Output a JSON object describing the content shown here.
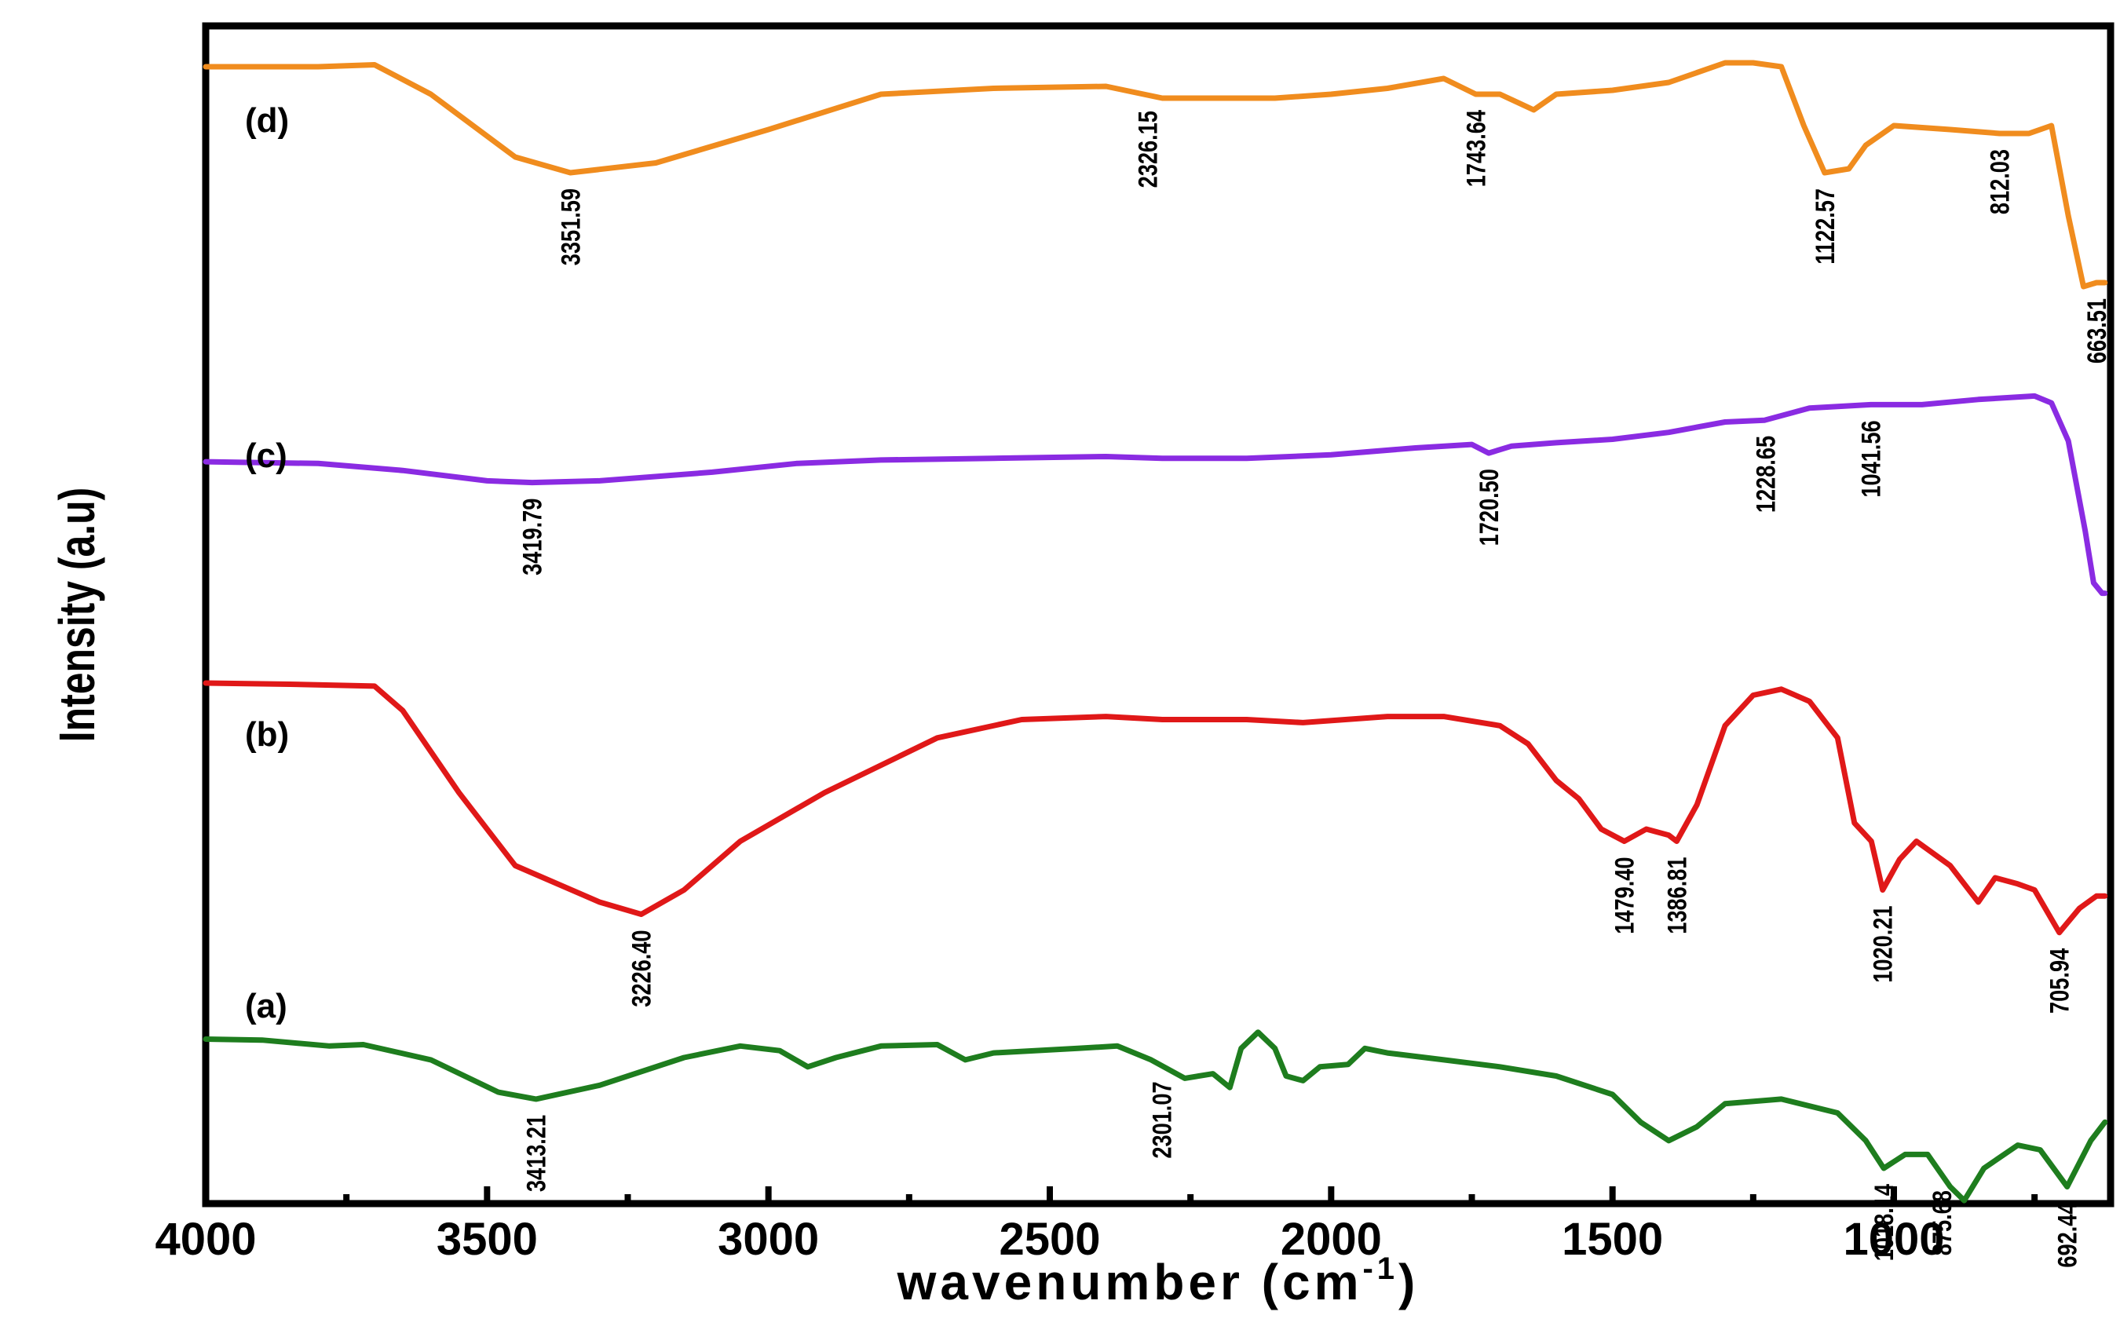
{
  "chart_data": {
    "type": "line",
    "title": "",
    "xlabel": "wavenumber (cm",
    "xlabel_superscript": "-1",
    "xlabel_suffix": ")",
    "ylabel": "Intensity (a.u)",
    "xlim": [
      4000,
      620
    ],
    "x_reversed": true,
    "x_ticks": [
      4000,
      3500,
      3000,
      2500,
      2000,
      1500,
      1000
    ],
    "x_tick_labels": [
      "4000",
      "3500",
      "3000",
      "2500",
      "2000",
      "1500",
      "1000"
    ],
    "grid": false,
    "legend": "none",
    "series": [
      {
        "name": "(a)",
        "color": "#1e7d1e",
        "points": [
          [
            4000,
            0.4
          ],
          [
            3900,
            0.42
          ],
          [
            3780,
            0.55
          ],
          [
            3720,
            0.52
          ],
          [
            3600,
            0.85
          ],
          [
            3480,
            1.55
          ],
          [
            3413,
            1.7
          ],
          [
            3300,
            1.4
          ],
          [
            3150,
            0.8
          ],
          [
            3050,
            0.55
          ],
          [
            2980,
            0.65
          ],
          [
            2930,
            1.0
          ],
          [
            2880,
            0.8
          ],
          [
            2800,
            0.55
          ],
          [
            2700,
            0.52
          ],
          [
            2650,
            0.85
          ],
          [
            2600,
            0.7
          ],
          [
            2450,
            0.6
          ],
          [
            2380,
            0.55
          ],
          [
            2320,
            0.85
          ],
          [
            2260,
            1.25
          ],
          [
            2210,
            1.15
          ],
          [
            2180,
            1.45
          ],
          [
            2160,
            0.6
          ],
          [
            2130,
            0.25
          ],
          [
            2100,
            0.6
          ],
          [
            2080,
            1.2
          ],
          [
            2050,
            1.3
          ],
          [
            2020,
            1.0
          ],
          [
            1970,
            0.95
          ],
          [
            1940,
            0.6
          ],
          [
            1900,
            0.7
          ],
          [
            1800,
            0.85
          ],
          [
            1700,
            1.0
          ],
          [
            1600,
            1.2
          ],
          [
            1500,
            1.6
          ],
          [
            1450,
            2.2
          ],
          [
            1400,
            2.6
          ],
          [
            1350,
            2.3
          ],
          [
            1300,
            1.8
          ],
          [
            1200,
            1.7
          ],
          [
            1100,
            2.0
          ],
          [
            1050,
            2.6
          ],
          [
            1018,
            3.2
          ],
          [
            980,
            2.9
          ],
          [
            940,
            2.9
          ],
          [
            900,
            3.6
          ],
          [
            875,
            3.9
          ],
          [
            840,
            3.2
          ],
          [
            780,
            2.7
          ],
          [
            740,
            2.8
          ],
          [
            692,
            3.6
          ],
          [
            650,
            2.6
          ],
          [
            625,
            2.2
          ]
        ]
      },
      {
        "name": "(b)",
        "color": "#e01818",
        "points": [
          [
            4000,
            0.0
          ],
          [
            3850,
            0.02
          ],
          [
            3700,
            0.05
          ],
          [
            3650,
            0.45
          ],
          [
            3550,
            1.8
          ],
          [
            3450,
            3.0
          ],
          [
            3300,
            3.6
          ],
          [
            3226,
            3.8
          ],
          [
            3150,
            3.4
          ],
          [
            3050,
            2.6
          ],
          [
            2900,
            1.8
          ],
          [
            2700,
            0.9
          ],
          [
            2550,
            0.6
          ],
          [
            2400,
            0.55
          ],
          [
            2300,
            0.6
          ],
          [
            2150,
            0.6
          ],
          [
            2050,
            0.65
          ],
          [
            1900,
            0.55
          ],
          [
            1800,
            0.55
          ],
          [
            1700,
            0.7
          ],
          [
            1650,
            1.0
          ],
          [
            1600,
            1.6
          ],
          [
            1560,
            1.9
          ],
          [
            1520,
            2.4
          ],
          [
            1479,
            2.6
          ],
          [
            1440,
            2.4
          ],
          [
            1400,
            2.5
          ],
          [
            1386,
            2.6
          ],
          [
            1350,
            2.0
          ],
          [
            1300,
            0.7
          ],
          [
            1250,
            0.2
          ],
          [
            1200,
            0.1
          ],
          [
            1150,
            0.3
          ],
          [
            1100,
            0.9
          ],
          [
            1070,
            2.3
          ],
          [
            1040,
            2.6
          ],
          [
            1020,
            3.4
          ],
          [
            990,
            2.9
          ],
          [
            960,
            2.6
          ],
          [
            900,
            3.0
          ],
          [
            850,
            3.6
          ],
          [
            820,
            3.2
          ],
          [
            780,
            3.3
          ],
          [
            750,
            3.4
          ],
          [
            706,
            4.1
          ],
          [
            670,
            3.7
          ],
          [
            640,
            3.5
          ],
          [
            625,
            3.5
          ]
        ]
      },
      {
        "name": "(c)",
        "color": "#8a2be2",
        "points": [
          [
            4000,
            0.5
          ],
          [
            3800,
            0.55
          ],
          [
            3650,
            0.75
          ],
          [
            3500,
            1.05
          ],
          [
            3420,
            1.1
          ],
          [
            3300,
            1.05
          ],
          [
            3100,
            0.8
          ],
          [
            2950,
            0.55
          ],
          [
            2800,
            0.45
          ],
          [
            2600,
            0.4
          ],
          [
            2400,
            0.35
          ],
          [
            2300,
            0.4
          ],
          [
            2150,
            0.4
          ],
          [
            2000,
            0.3
          ],
          [
            1850,
            0.1
          ],
          [
            1750,
            0.0
          ],
          [
            1720,
            0.25
          ],
          [
            1680,
            0.05
          ],
          [
            1600,
            -0.05
          ],
          [
            1500,
            -0.15
          ],
          [
            1400,
            -0.35
          ],
          [
            1300,
            -0.65
          ],
          [
            1230,
            -0.7
          ],
          [
            1150,
            -1.05
          ],
          [
            1041,
            -1.15
          ],
          [
            950,
            -1.15
          ],
          [
            850,
            -1.3
          ],
          [
            750,
            -1.4
          ],
          [
            720,
            -1.2
          ],
          [
            690,
            -0.1
          ],
          [
            660,
            2.5
          ],
          [
            645,
            4.0
          ],
          [
            630,
            4.3
          ],
          [
            625,
            4.3
          ]
        ]
      },
      {
        "name": "(d)",
        "color": "#f08c1e",
        "points": [
          [
            4000,
            0.0
          ],
          [
            3800,
            0.0
          ],
          [
            3700,
            -0.05
          ],
          [
            3600,
            0.7
          ],
          [
            3450,
            2.3
          ],
          [
            3352,
            2.7
          ],
          [
            3200,
            2.45
          ],
          [
            3000,
            1.6
          ],
          [
            2800,
            0.7
          ],
          [
            2600,
            0.55
          ],
          [
            2400,
            0.5
          ],
          [
            2300,
            0.8
          ],
          [
            2100,
            0.8
          ],
          [
            2000,
            0.7
          ],
          [
            1900,
            0.55
          ],
          [
            1800,
            0.3
          ],
          [
            1743,
            0.7
          ],
          [
            1700,
            0.7
          ],
          [
            1640,
            1.1
          ],
          [
            1600,
            0.7
          ],
          [
            1500,
            0.6
          ],
          [
            1400,
            0.4
          ],
          [
            1300,
            -0.1
          ],
          [
            1250,
            -0.1
          ],
          [
            1200,
            0.0
          ],
          [
            1160,
            1.5
          ],
          [
            1123,
            2.7
          ],
          [
            1080,
            2.6
          ],
          [
            1050,
            2.0
          ],
          [
            1000,
            1.5
          ],
          [
            900,
            1.6
          ],
          [
            812,
            1.7
          ],
          [
            760,
            1.7
          ],
          [
            720,
            1.5
          ],
          [
            690,
            3.8
          ],
          [
            663,
            5.6
          ],
          [
            640,
            5.5
          ],
          [
            625,
            5.5
          ]
        ]
      }
    ],
    "series_tags": [
      "(a)",
      "(b)",
      "(c)",
      "(d)"
    ],
    "peak_labels": [
      {
        "series": "(a)",
        "text": "3413.21",
        "x": 3413
      },
      {
        "series": "(a)",
        "text": "2301.07",
        "x": 2301
      },
      {
        "series": "(a)",
        "text": "1018.14",
        "x": 1018
      },
      {
        "series": "(a)",
        "text": "875.68",
        "x": 915
      },
      {
        "series": "(a)",
        "text": "692.44",
        "x": 692
      },
      {
        "series": "(b)",
        "text": "3226.40",
        "x": 3226
      },
      {
        "series": "(b)",
        "text": "1479.40",
        "x": 1479
      },
      {
        "series": "(b)",
        "text": "1386.81",
        "x": 1386
      },
      {
        "series": "(b)",
        "text": "1020.21",
        "x": 1020
      },
      {
        "series": "(b)",
        "text": "705.94",
        "x": 706
      },
      {
        "series": "(c)",
        "text": "3419.79",
        "x": 3420
      },
      {
        "series": "(c)",
        "text": "1720.50",
        "x": 1720
      },
      {
        "series": "(c)",
        "text": "1228.65",
        "x": 1228
      },
      {
        "series": "(c)",
        "text": "1041.56",
        "x": 1041
      },
      {
        "series": "(d)",
        "text": "3351.59",
        "x": 3352
      },
      {
        "series": "(d)",
        "text": "2326.15",
        "x": 2326
      },
      {
        "series": "(d)",
        "text": "1743.64",
        "x": 1743
      },
      {
        "series": "(d)",
        "text": "1122.57",
        "x": 1123
      },
      {
        "series": "(d)",
        "text": "812.03",
        "x": 812
      },
      {
        "series": "(d)",
        "text": "663.51",
        "x": 640
      }
    ]
  }
}
